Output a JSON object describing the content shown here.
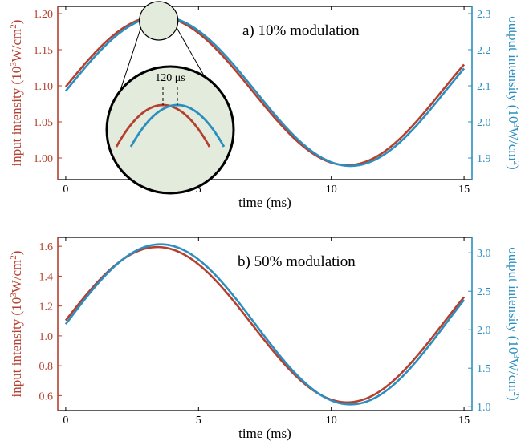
{
  "colors": {
    "input": "#b5402f",
    "output": "#2a8fc0",
    "inset_fill": "#e3ebdc",
    "axes": "#000000"
  },
  "chart_data": [
    {
      "type": "line",
      "title": "a) 10% modulation",
      "xlabel": "time (ms)",
      "ylabel_left": [
        "input intensity (10",
        "3",
        "W/cm",
        "2",
        ")"
      ],
      "ylabel_right": [
        "output intensity (10",
        "3",
        "W/cm",
        "2",
        ")"
      ],
      "xlim": [
        -0.3,
        15.3
      ],
      "ylim_left": [
        0.97,
        1.21
      ],
      "ylim_right": [
        1.84,
        2.32
      ],
      "xticks": [
        0,
        5,
        10,
        15
      ],
      "xtick_labels": [
        "0",
        "5",
        "10",
        "15"
      ],
      "yticks_left": [
        1.0,
        1.05,
        1.1,
        1.15,
        1.2
      ],
      "ytick_labels_left": [
        "1.00",
        "1.05",
        "1.10",
        "1.15",
        "1.20"
      ],
      "yticks_right": [
        1.9,
        2.0,
        2.1,
        2.2,
        2.3
      ],
      "ytick_labels_right": [
        "1.9",
        "2.0",
        "2.1",
        "2.2",
        "2.3"
      ],
      "series": [
        {
          "axis": "left",
          "color": "#b5402f",
          "mean": 1.093,
          "amplitude": 0.103,
          "period_ms": 14.3,
          "peak_ms": 3.45,
          "x_range": [
            0,
            15
          ]
        },
        {
          "axis": "right",
          "color": "#2a8fc0",
          "mean": 2.085,
          "amplitude": 0.207,
          "period_ms": 14.3,
          "peak_ms": 3.57,
          "x_range": [
            0,
            15
          ]
        }
      ],
      "inset": {
        "annotation": "120 μs",
        "zoom_center": [
          3.5,
          1.19
        ]
      },
      "grid": false
    },
    {
      "type": "line",
      "title": "b) 50% modulation",
      "xlabel": "time (ms)",
      "ylabel_left": [
        "input intensity (10",
        "3",
        "W/cm",
        "2",
        ")"
      ],
      "ylabel_right": [
        "output intensity (10",
        "3",
        "W/cm",
        "2",
        ")"
      ],
      "xlim": [
        -0.3,
        15.3
      ],
      "ylim_left": [
        0.5,
        1.66
      ],
      "ylim_right": [
        0.95,
        3.2
      ],
      "xticks": [
        0,
        5,
        10,
        15
      ],
      "xtick_labels": [
        "0",
        "5",
        "10",
        "15"
      ],
      "yticks_left": [
        0.6,
        0.8,
        1.0,
        1.2,
        1.4,
        1.6
      ],
      "ytick_labels_left": [
        "0.6",
        "0.8",
        "1.0",
        "1.2",
        "1.4",
        "1.6"
      ],
      "yticks_right": [
        1.0,
        1.5,
        2.0,
        2.5,
        3.0
      ],
      "ytick_labels_right": [
        "1.0",
        "1.5",
        "2.0",
        "2.5",
        "3.0"
      ],
      "series": [
        {
          "axis": "left",
          "color": "#b5402f",
          "mean": 1.075,
          "amplitude": 0.52,
          "period_ms": 14.3,
          "peak_ms": 3.45,
          "x_range": [
            0,
            15
          ]
        },
        {
          "axis": "right",
          "color": "#2a8fc0",
          "mean": 2.07,
          "amplitude": 1.04,
          "period_ms": 14.3,
          "peak_ms": 3.57,
          "x_range": [
            0,
            15
          ]
        }
      ],
      "grid": false
    }
  ]
}
